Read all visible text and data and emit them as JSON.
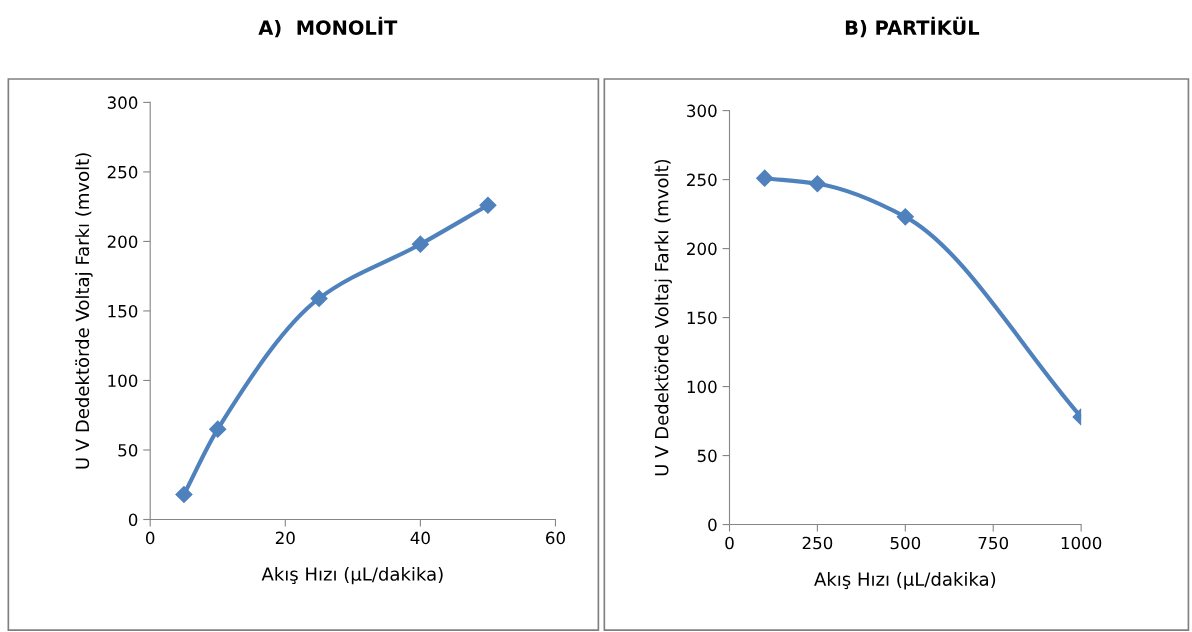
{
  "chart_data": [
    {
      "type": "line",
      "title": "A)  MONOLİT",
      "xlabel": "Akış Hızı (µL/dakika)",
      "ylabel": "U V Dedektörde Voltaj Farkı (mvolt)",
      "x": [
        5,
        10,
        25,
        40,
        50
      ],
      "series": [
        {
          "color": "#4f81bd",
          "values": [
            18,
            65,
            159,
            198,
            226
          ]
        }
      ],
      "xlim": [
        0,
        60
      ],
      "xticks": [
        0,
        20,
        40,
        60
      ],
      "ylim": [
        0,
        300
      ],
      "yticks": [
        0,
        50,
        100,
        150,
        200,
        250,
        300
      ],
      "marker": "diamond",
      "grid": false,
      "legend": false
    },
    {
      "type": "line",
      "title": "B) PARTİKÜL",
      "xlabel": "Akış Hızı (µL/dakika)",
      "ylabel": "U V Dedektörde Voltaj Farkı (mvolt)",
      "x": [
        100,
        250,
        500,
        1000
      ],
      "series": [
        {
          "color": "#4f81bd",
          "values": [
            251,
            247,
            223,
            78
          ]
        }
      ],
      "xlim": [
        0,
        1000
      ],
      "xticks": [
        0,
        250,
        500,
        750,
        1000
      ],
      "ylim": [
        0,
        300
      ],
      "yticks": [
        0,
        50,
        100,
        150,
        200,
        250,
        300
      ],
      "marker": "diamond",
      "grid": false,
      "legend": false
    }
  ]
}
